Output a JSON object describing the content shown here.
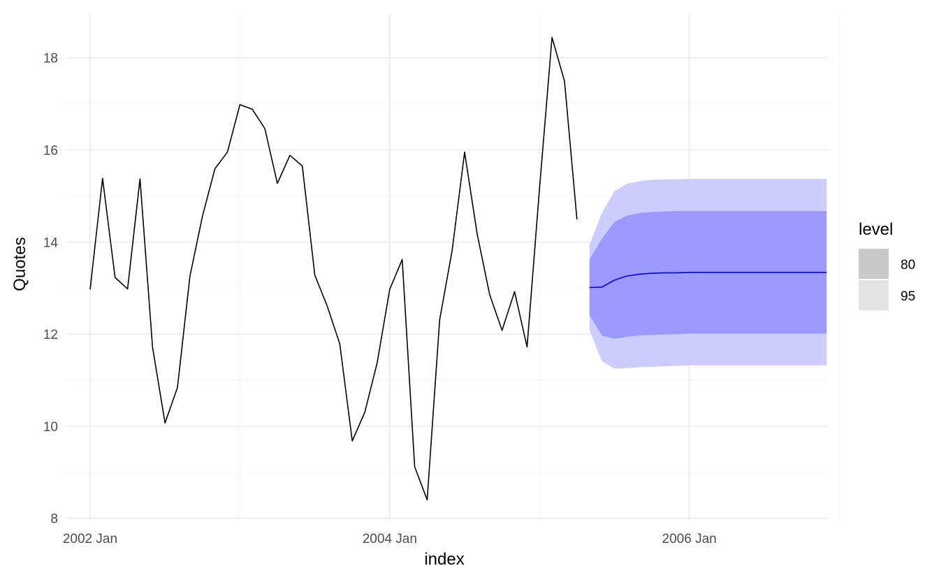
{
  "chart_data": {
    "type": "line",
    "title": "",
    "xlabel": "index",
    "ylabel": "Quotes",
    "x_start": "2002 Jan",
    "frequency": "monthly",
    "xlim": [
      "2001 Nov",
      "2006 Dec"
    ],
    "ylim": [
      7.95,
      18.95
    ],
    "x_ticks": [
      "2002 Jan",
      "2004 Jan",
      "2006 Jan"
    ],
    "y_ticks": [
      8,
      10,
      12,
      14,
      16,
      18
    ],
    "grid": true,
    "series": [
      {
        "name": "",
        "color": "#000000",
        "x": [
          "2002 Jan",
          "2002 Feb",
          "2002 Mar",
          "2002 Apr",
          "2002 May",
          "2002 Jun",
          "2002 Jul",
          "2002 Aug",
          "2002 Sep",
          "2002 Oct",
          "2002 Nov",
          "2002 Dec",
          "2003 Jan",
          "2003 Feb",
          "2003 Mar",
          "2003 Apr",
          "2003 May",
          "2003 Jun",
          "2003 Jul",
          "2003 Aug",
          "2003 Sep",
          "2003 Oct",
          "2003 Nov",
          "2003 Dec",
          "2004 Jan",
          "2004 Feb",
          "2004 Mar",
          "2004 Apr",
          "2004 May",
          "2004 Jun",
          "2004 Jul",
          "2004 Aug",
          "2004 Sep",
          "2004 Oct",
          "2004 Nov",
          "2004 Dec",
          "2005 Jan",
          "2005 Feb",
          "2005 Mar",
          "2005 Apr"
        ],
        "values": [
          12.97,
          15.38,
          13.23,
          12.98,
          15.37,
          11.72,
          10.07,
          10.84,
          13.26,
          14.56,
          15.59,
          15.95,
          16.98,
          16.88,
          16.46,
          15.27,
          15.88,
          15.65,
          13.28,
          12.6,
          11.79,
          9.68,
          10.3,
          11.38,
          12.97,
          13.62,
          9.12,
          8.4,
          12.31,
          13.81,
          15.95,
          14.18,
          12.86,
          12.08,
          12.92,
          11.72,
          15.16,
          18.44,
          17.49,
          14.49
        ]
      },
      {
        "name": "",
        "color": "#0000ff",
        "x": [
          "2005 May",
          "2005 Jun",
          "2005 Jul",
          "2005 Aug",
          "2005 Sep",
          "2005 Oct",
          "2005 Nov",
          "2005 Dec",
          "2006 Jan",
          "2006 Feb",
          "2006 Mar",
          "2006 Apr",
          "2006 May",
          "2006 Jun",
          "2006 Jul",
          "2006 Aug",
          "2006 Sep",
          "2006 Oct",
          "2006 Nov",
          "2006 Dec"
        ],
        "values": [
          13.01,
          13.02,
          13.17,
          13.26,
          13.3,
          13.32,
          13.33,
          13.33,
          13.34,
          13.34,
          13.34,
          13.34,
          13.34,
          13.34,
          13.34,
          13.34,
          13.34,
          13.34,
          13.34,
          13.34
        ],
        "lower95": [
          12.09,
          11.41,
          11.25,
          11.26,
          11.28,
          11.29,
          11.3,
          11.31,
          11.32,
          11.32,
          11.32,
          11.32,
          11.32,
          11.32,
          11.32,
          11.32,
          11.32,
          11.32,
          11.32,
          11.32
        ],
        "upper95": [
          13.94,
          14.63,
          15.1,
          15.26,
          15.32,
          15.35,
          15.36,
          15.36,
          15.37,
          15.37,
          15.37,
          15.37,
          15.37,
          15.37,
          15.37,
          15.37,
          15.37,
          15.37,
          15.37,
          15.37
        ],
        "lower80": [
          12.41,
          11.97,
          11.9,
          11.94,
          11.97,
          11.98,
          11.99,
          12.0,
          12.01,
          12.01,
          12.01,
          12.01,
          12.01,
          12.01,
          12.01,
          12.01,
          12.01,
          12.01,
          12.01,
          12.01
        ],
        "upper80": [
          13.62,
          14.07,
          14.43,
          14.57,
          14.63,
          14.65,
          14.66,
          14.67,
          14.67,
          14.67,
          14.67,
          14.67,
          14.67,
          14.67,
          14.67,
          14.67,
          14.67,
          14.67,
          14.67,
          14.67
        ]
      }
    ],
    "legend": {
      "title": "level",
      "position": "right",
      "entries": [
        {
          "label": "80",
          "color": "#c8c8c8"
        },
        {
          "label": "95",
          "color": "#e3e3e3"
        }
      ]
    },
    "band_colors": {
      "level80": "#9999ff",
      "level95": "#ccccff"
    }
  }
}
